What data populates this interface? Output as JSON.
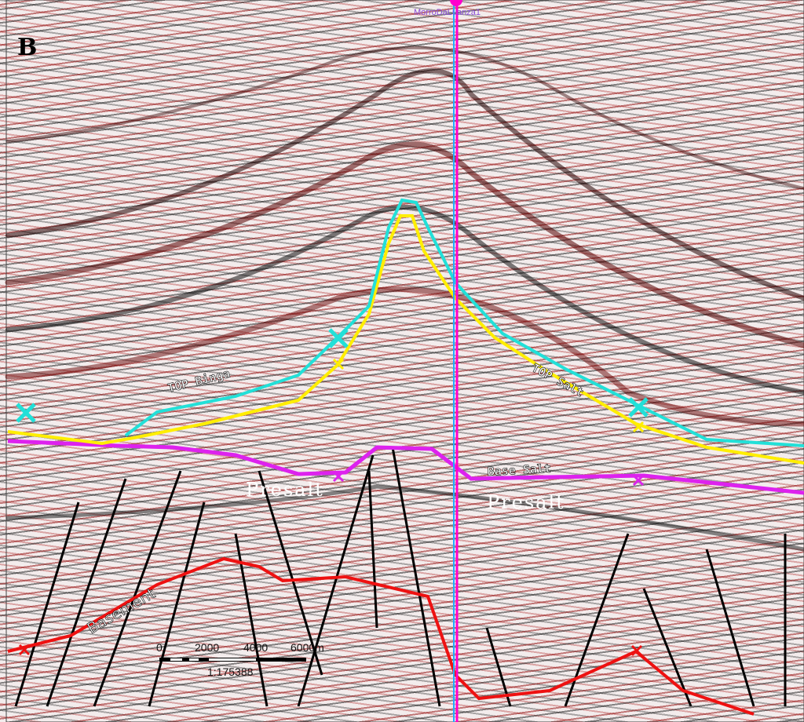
{
  "panel_label": "B",
  "well": {
    "name": "MorroDaLuanza1",
    "color": "#ff00cc"
  },
  "horizons": [
    {
      "name": "TOP Binga",
      "color": "#22e0d8"
    },
    {
      "name": "TOP Salt",
      "color": "#ffee00"
    },
    {
      "name": "Base Salt",
      "color": "#dd22ee"
    },
    {
      "name": "Basement",
      "color": "#ee1111"
    }
  ],
  "labels": {
    "top_binga": "TOP Binga",
    "top_salt": "TOP Salt",
    "base_salt": "Base Salt",
    "basement": "Basement",
    "presalt_left": "Presalt",
    "presalt_right": "Presalt"
  },
  "scale_bar": {
    "ticks": [
      "0",
      "2000",
      "4000",
      "6000m"
    ],
    "ratio": "1:175388"
  }
}
